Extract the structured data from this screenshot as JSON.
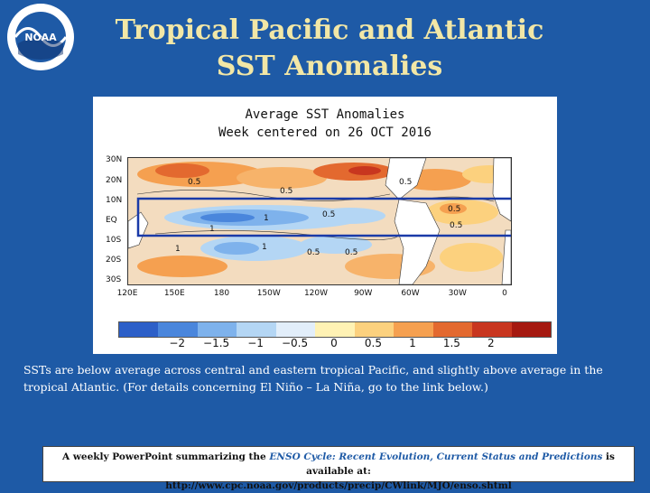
{
  "slide": {
    "title_line1": "Tropical Pacific and Atlantic",
    "title_line2": "SST Anomalies",
    "logo_text": "NOAA",
    "description": "SSTs are below average across central and eastern tropical Pacific, and slightly above average in the tropical Atlantic. (For details concerning El Niño – La Niña, go to the link below.)",
    "footer_prefix": "A weekly PowerPoint summarizing the ",
    "footer_italic": "ENSO Cycle: Recent Evolution, Current Status and Predictions",
    "footer_suffix": " is available at:",
    "footer_url": "http://www.cpc.noaa.gov/products/precip/CWlink/MJO/enso.shtml"
  },
  "map": {
    "title_line1": "Average SST Anomalies",
    "title_line2": "Week centered on 26 OCT 2016",
    "lat_labels": [
      "30N",
      "20N",
      "10N",
      "EQ",
      "10S",
      "20S",
      "30S"
    ],
    "lon_labels": [
      "120E",
      "150E",
      "180",
      "150W",
      "120W",
      "90W",
      "60W",
      "30W",
      "0"
    ],
    "contour_labels": [
      "0.5",
      "0.5",
      "0.5",
      "1",
      "0.5",
      "0.5",
      "0.5",
      "1",
      "1",
      "0.5",
      "0.5",
      "1"
    ],
    "highlight_box_color": "#1a3aa8"
  },
  "colorbar": {
    "labels": [
      "−2",
      "−1.5",
      "−1",
      "−0.5",
      "0",
      "0.5",
      "1",
      "1.5",
      "2"
    ],
    "colors": [
      "#2c5fc8",
      "#4a86dc",
      "#7eb2ec",
      "#b4d6f4",
      "#e2eefa",
      "#fff2b4",
      "#fcd17e",
      "#f5a050",
      "#e3692f",
      "#c8361f",
      "#a51910"
    ]
  }
}
